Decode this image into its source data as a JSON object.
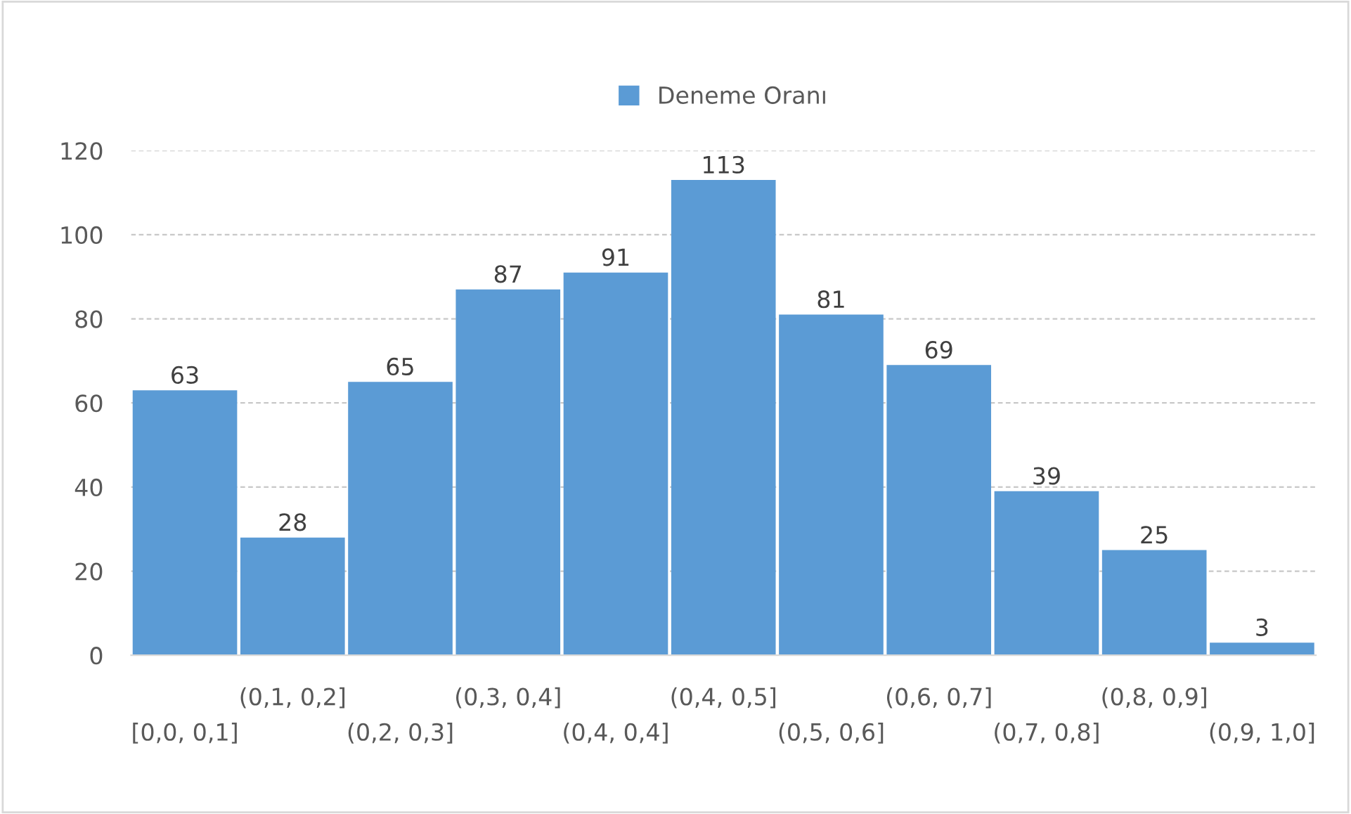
{
  "chart_data": {
    "type": "bar",
    "categories": [
      "[0,0, 0,1]",
      "(0,1, 0,2]",
      "(0,2, 0,3]",
      "(0,3, 0,4]",
      "(0,4, 0,4]",
      "(0,4, 0,5]",
      "(0,5, 0,6]",
      "(0,6, 0,7]",
      "(0,7, 0,8]",
      "(0,8, 0,9]",
      "(0,9, 1,0]"
    ],
    "series": [
      {
        "name": "Deneme Oranı",
        "color": "#5b9bd5",
        "values": [
          63,
          28,
          65,
          87,
          91,
          113,
          81,
          69,
          39,
          25,
          3
        ]
      }
    ],
    "ylim": [
      0,
      120
    ],
    "yticks": [
      0,
      20,
      40,
      60,
      80,
      100,
      120
    ],
    "grid": "y",
    "legend": "top",
    "data_labels": true
  }
}
